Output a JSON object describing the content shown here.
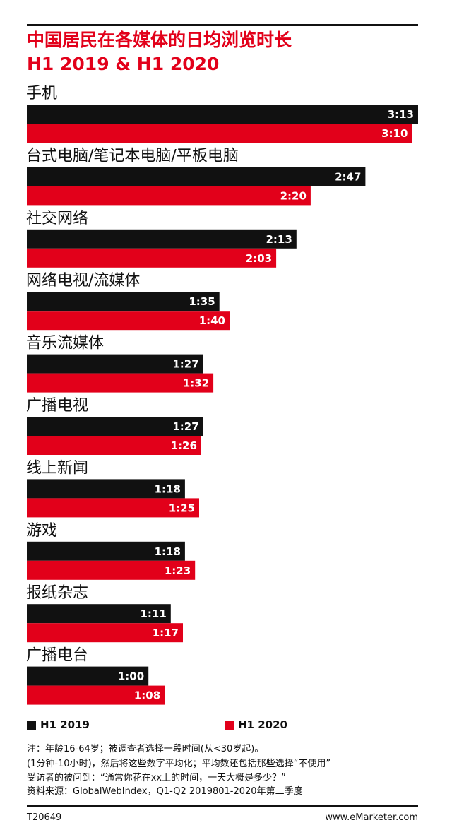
{
  "chart_data": {
    "type": "bar",
    "orientation": "horizontal",
    "title": "中国居民在各媒体的日均浏览时长",
    "subtitle": "H1 2019 & H1 2020",
    "categories": [
      "手机",
      "台式电脑/笔记本电脑/平板电脑",
      "社交网络",
      "网络电视/流媒体",
      "音乐流媒体",
      "广播电视",
      "线上新闻",
      "游戏",
      "报纸杂志",
      "广播电台"
    ],
    "series": [
      {
        "name": "H1 2019",
        "color": "#111111",
        "values": [
          193,
          167,
          133,
          95,
          87,
          87,
          78,
          78,
          71,
          60
        ],
        "labels": [
          "3:13",
          "2:47",
          "2:13",
          "1:35",
          "1:27",
          "1:27",
          "1:18",
          "1:18",
          "1:11",
          "1:00"
        ]
      },
      {
        "name": "H1 2020",
        "color": "#e2001a",
        "values": [
          190,
          140,
          123,
          100,
          92,
          86,
          85,
          83,
          77,
          68
        ],
        "labels": [
          "3:10",
          "2:20",
          "2:03",
          "1:40",
          "1:32",
          "1:26",
          "1:25",
          "1:23",
          "1:17",
          "1:08"
        ]
      }
    ],
    "unit": "minutes",
    "xlim": [
      0,
      193
    ],
    "grid": false,
    "legend_position": "bottom"
  },
  "notes": {
    "line1": "注：年龄16-64岁；被调查者选择一段时间(从<30岁起)。",
    "line2": "(1分钟-10小时)，然后将这些数字平均化；平均数还包括那些选择“不使用”",
    "line3": "受访者的被问到：“通常你花在xx上的时间，一天大概是多少？”",
    "line4": "资料来源：GlobalWebIndex，Q1-Q2 2019801-2020年第二季度"
  },
  "footer": {
    "code": "T20649",
    "brand": "www.eMarketer.com"
  },
  "colors": {
    "accent": "#e2001a",
    "dark": "#111111"
  }
}
